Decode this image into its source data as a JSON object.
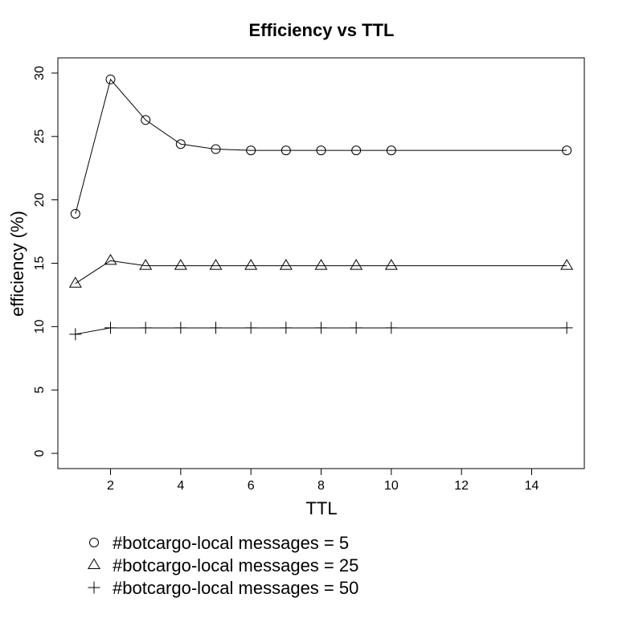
{
  "chart_data": {
    "type": "line",
    "title": "Efficiency vs TTL",
    "xlabel": "TTL",
    "ylabel": "efficiency (%)",
    "xlim": [
      0.5,
      15.5
    ],
    "ylim": [
      -1.2,
      31.2
    ],
    "x_ticks": [
      "2",
      "4",
      "6",
      "8",
      "10",
      "12",
      "14"
    ],
    "y_ticks": [
      "0",
      "5",
      "10",
      "15",
      "20",
      "25",
      "30"
    ],
    "grid": false,
    "legend_position": "bottom-left",
    "series": [
      {
        "name": "#botcargo-local messages = 5",
        "marker": "circle",
        "x": [
          1,
          2,
          3,
          4,
          5,
          6,
          7,
          8,
          9,
          10,
          15
        ],
        "values": [
          18.9,
          29.5,
          26.3,
          24.4,
          24.0,
          23.9,
          23.9,
          23.9,
          23.9,
          23.9,
          23.9
        ]
      },
      {
        "name": "#botcargo-local messages = 25",
        "marker": "triangle",
        "x": [
          1,
          2,
          3,
          4,
          5,
          6,
          7,
          8,
          9,
          10,
          15
        ],
        "values": [
          13.4,
          15.2,
          14.8,
          14.8,
          14.8,
          14.8,
          14.8,
          14.8,
          14.8,
          14.8,
          14.8
        ]
      },
      {
        "name": "#botcargo-local messages = 50",
        "marker": "plus",
        "x": [
          1,
          2,
          3,
          4,
          5,
          6,
          7,
          8,
          9,
          10,
          15
        ],
        "values": [
          9.4,
          9.9,
          9.9,
          9.9,
          9.9,
          9.9,
          9.9,
          9.9,
          9.9,
          9.9,
          9.9
        ]
      }
    ]
  }
}
